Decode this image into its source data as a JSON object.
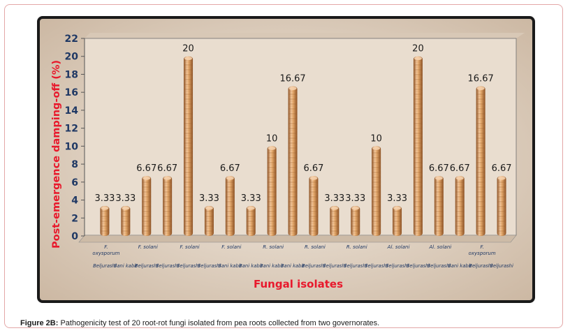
{
  "chart_data": {
    "type": "bar",
    "xlabel": "Fungal isolates",
    "ylabel": "Post-emergence damping-off (%)",
    "ylim": [
      0,
      22
    ],
    "yticks": [
      "0",
      "2",
      "4",
      "6",
      "8",
      "10",
      "12",
      "14",
      "16",
      "18",
      "20",
      "22"
    ],
    "grid": false,
    "values": [
      3.33,
      3.33,
      6.67,
      6.67,
      20,
      3.33,
      6.67,
      3.33,
      10,
      16.67,
      6.67,
      3.33,
      3.33,
      10,
      3.33,
      20,
      6.67,
      6.67,
      16.67,
      6.67
    ],
    "value_labels": [
      "3.33",
      "3.33",
      "6.67",
      "6.67",
      "20",
      "3.33",
      "6.67",
      "3.33",
      "10",
      "16.67",
      "6.67",
      "3.33",
      "3.33",
      "10",
      "3.33",
      "20",
      "6.67",
      "6.67",
      "16.67",
      "6.67"
    ],
    "species_labels": [
      {
        "text": "F.",
        "bar": 0
      },
      {
        "text": "oxysporum",
        "bar": 0
      },
      {
        "text": "F. solani",
        "bar": 2
      },
      {
        "text": "F. solani",
        "bar": 4
      },
      {
        "text": "F. solani",
        "bar": 6
      },
      {
        "text": "R. solani",
        "bar": 8
      },
      {
        "text": "R. solani",
        "bar": 10
      },
      {
        "text": "R. solani",
        "bar": 12
      },
      {
        "text": "Al. solani",
        "bar": 14
      },
      {
        "text": "Al. solani",
        "bar": 16
      },
      {
        "text": "F.",
        "bar": 18
      },
      {
        "text": "oxysporum",
        "bar": 18
      }
    ],
    "location_labels": [
      "Beljurashi",
      "Bani kabir",
      "Beljurashi",
      "Beljurashi",
      "Beljurashi",
      "Beljurashi",
      "Bani kabir",
      "Bani kabir",
      "Bani kabir",
      "Bani kabir",
      "Beljurashi",
      "Beljurashi",
      "Beljurashi",
      "Beljurashi",
      "Beljurashi",
      "Beljurashi",
      "Beljurashi",
      "Bani kabir",
      "Beljurashi",
      "Beljurashi"
    ],
    "colors": {
      "bar_light": "#f3c79b",
      "bar_mid": "#d99a5e",
      "bar_dark": "#8a4f22",
      "stripe": "#a86a35",
      "axis_title": "#e8192c",
      "axis_text": "#1f3864",
      "frame": "#1a1a1a",
      "plot_bg": "#e9ddcf"
    }
  },
  "caption": {
    "label": "Figure 2B:",
    "text": " Pathogenicity test of 20 root-rot fungi isolated from pea roots collected from two governorates."
  }
}
